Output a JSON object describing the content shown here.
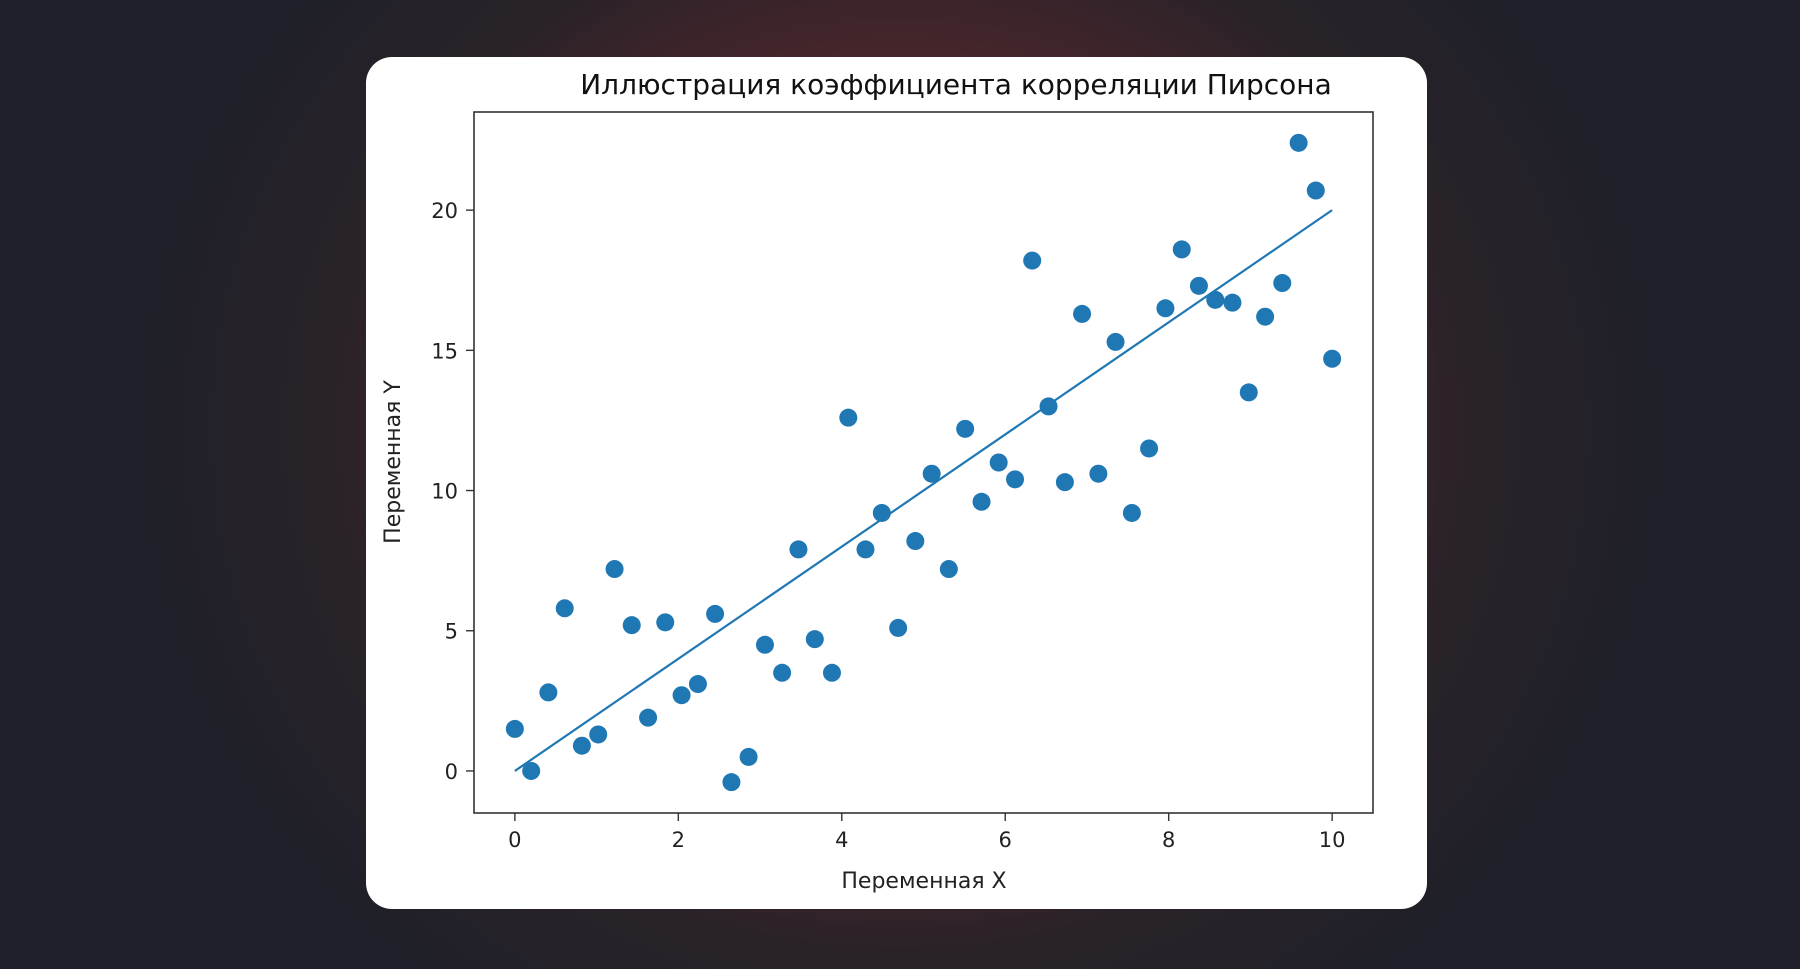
{
  "chart_data": {
    "type": "scatter",
    "title": "Иллюстрация коэффициента корреляции Пирсона",
    "xlabel": "Переменная X",
    "ylabel": "Переменная Y",
    "xlim": [
      -0.5,
      10.5
    ],
    "ylim": [
      -1.5,
      23.5
    ],
    "xticks": [
      0,
      2,
      4,
      6,
      8,
      10
    ],
    "yticks": [
      0,
      5,
      10,
      15,
      20
    ],
    "xtick_labels": [
      "0",
      "2",
      "4",
      "6",
      "8",
      "10"
    ],
    "ytick_labels": [
      "0",
      "5",
      "10",
      "15",
      "20"
    ],
    "grid": false,
    "point_color": "#1f77b4",
    "line_color": "#1f77b4",
    "points": {
      "x": [
        0.0,
        0.2,
        0.41,
        0.61,
        0.82,
        1.02,
        1.22,
        1.43,
        1.63,
        1.84,
        2.04,
        2.24,
        2.45,
        2.65,
        2.86,
        3.06,
        3.27,
        3.47,
        3.67,
        3.88,
        4.08,
        4.29,
        4.49,
        4.69,
        4.9,
        5.1,
        5.31,
        5.51,
        5.71,
        5.92,
        6.12,
        6.33,
        6.53,
        6.73,
        6.94,
        7.14,
        7.35,
        7.55,
        7.76,
        7.96,
        8.16,
        8.37,
        8.57,
        8.78,
        8.98,
        9.18,
        9.39,
        9.59,
        9.8,
        10.0
      ],
      "y": [
        1.5,
        0.0,
        2.8,
        5.8,
        0.9,
        1.3,
        7.2,
        5.2,
        1.9,
        5.3,
        2.7,
        3.1,
        5.6,
        -0.4,
        0.5,
        4.5,
        3.5,
        7.9,
        4.7,
        3.5,
        12.6,
        7.9,
        9.2,
        5.1,
        8.2,
        10.6,
        7.2,
        12.2,
        9.6,
        11.0,
        10.4,
        18.2,
        13.0,
        10.3,
        16.3,
        10.6,
        15.3,
        9.2,
        11.5,
        16.5,
        18.6,
        17.3,
        16.8,
        16.7,
        13.5,
        16.2,
        17.4,
        22.4,
        20.7,
        14.7
      ]
    },
    "fit_line": {
      "x": [
        0,
        10
      ],
      "y": [
        0,
        20
      ]
    }
  }
}
